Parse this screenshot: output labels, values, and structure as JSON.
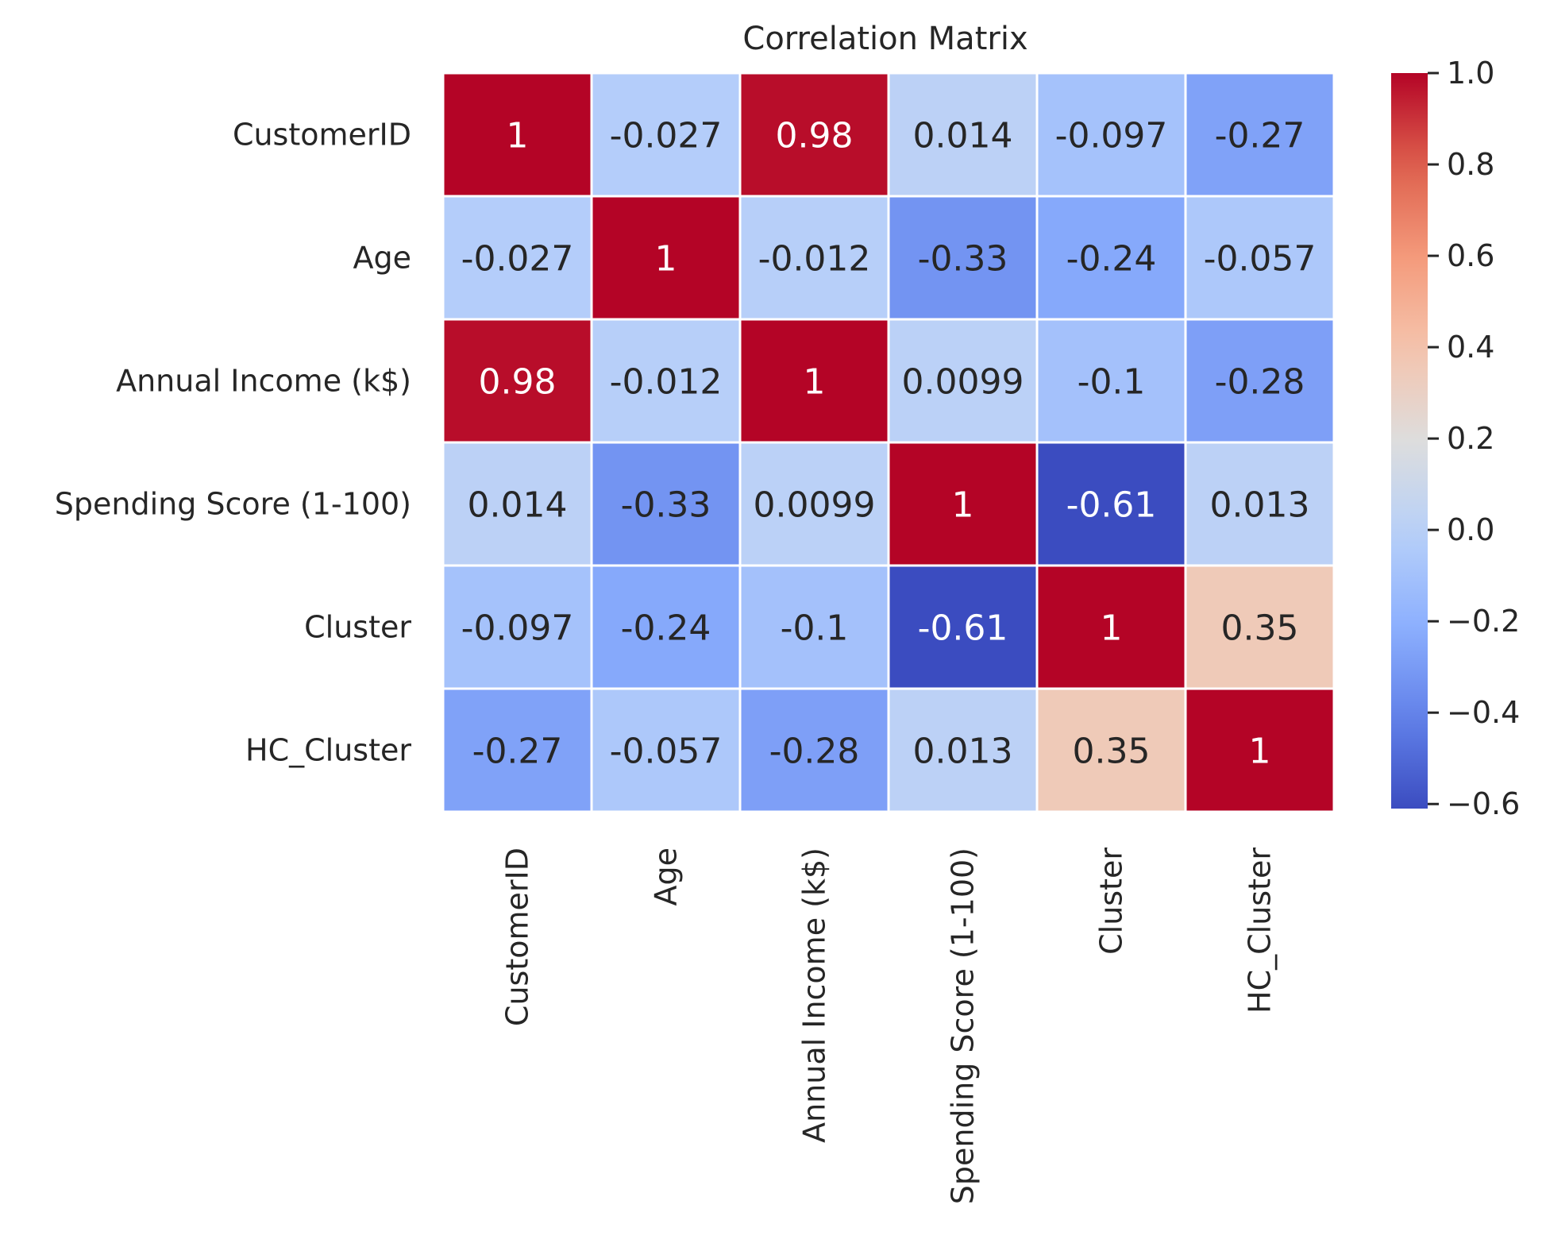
{
  "chart_data": {
    "type": "heatmap",
    "title": "Correlation Matrix",
    "xlabel": "",
    "ylabel": "",
    "rows": [
      "CustomerID",
      "Age",
      "Annual Income (k$)",
      "Spending Score (1-100)",
      "Cluster",
      "HC_Cluster"
    ],
    "columns": [
      "CustomerID",
      "Age",
      "Annual Income (k$)",
      "Spending Score (1-100)",
      "Cluster",
      "HC_Cluster"
    ],
    "values": [
      [
        1,
        -0.027,
        0.98,
        0.014,
        -0.097,
        -0.27
      ],
      [
        -0.027,
        1,
        -0.012,
        -0.33,
        -0.24,
        -0.057
      ],
      [
        0.98,
        -0.012,
        1,
        0.0099,
        -0.1,
        -0.28
      ],
      [
        0.014,
        -0.33,
        0.0099,
        1,
        -0.61,
        0.013
      ],
      [
        -0.097,
        -0.24,
        -0.1,
        -0.61,
        1,
        0.35
      ],
      [
        -0.27,
        -0.057,
        -0.28,
        0.013,
        0.35,
        1
      ]
    ],
    "annotations": [
      [
        "1",
        "-0.027",
        "0.98",
        "0.014",
        "-0.097",
        "-0.27"
      ],
      [
        "-0.027",
        "1",
        "-0.012",
        "-0.33",
        "-0.24",
        "-0.057"
      ],
      [
        "0.98",
        "-0.012",
        "1",
        "0.0099",
        "-0.1",
        "-0.28"
      ],
      [
        "0.014",
        "-0.33",
        "0.0099",
        "1",
        "-0.61",
        "0.013"
      ],
      [
        "-0.097",
        "-0.24",
        "-0.1",
        "-0.61",
        "1",
        "0.35"
      ],
      [
        "-0.27",
        "-0.057",
        "-0.28",
        "0.013",
        "0.35",
        "1"
      ]
    ],
    "colormap": "coolwarm",
    "vmin": -0.61,
    "vmax": 1,
    "grid": false,
    "legend": "colorbar-right",
    "colorbar_ticks": [
      1.0,
      0.8,
      0.6,
      0.4,
      0.2,
      0.0,
      -0.2,
      -0.4,
      -0.6
    ],
    "colorbar_tick_labels": [
      "1.0",
      "0.8",
      "0.6",
      "0.4",
      "0.2",
      "0.0",
      "−0.2",
      "−0.4",
      "−0.6"
    ],
    "cell_border_color": "#ffffff"
  }
}
